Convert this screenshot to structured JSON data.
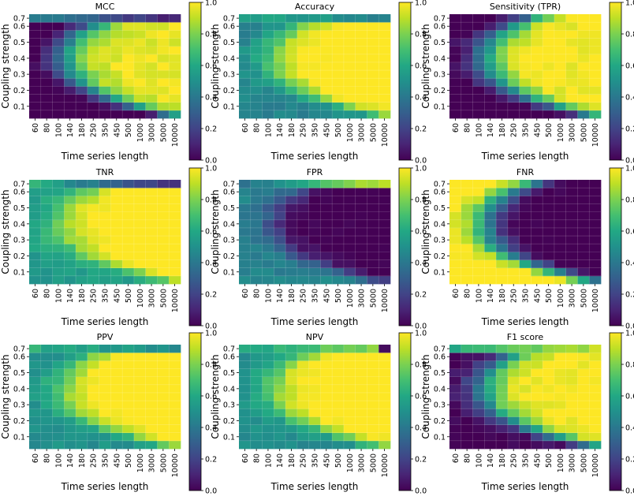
{
  "figure": {
    "colorbar_ticks": [
      "0.0",
      "0.2",
      "0.4",
      "0.6",
      "0.8",
      "1.0"
    ],
    "colormap": [
      "#440154",
      "#482475",
      "#414487",
      "#355f8d",
      "#2a788e",
      "#21918c",
      "#22a884",
      "#44bf70",
      "#7ad151",
      "#bddf26",
      "#fde725"
    ]
  },
  "chart_data": [
    {
      "type": "heatmap",
      "title": "MCC",
      "pattern": "mcc",
      "xlabel": "Time series length",
      "ylabel": "Coupling strength",
      "x_categories": [
        "60",
        "80",
        "100",
        "140",
        "180",
        "250",
        "350",
        "450",
        "500",
        "1000",
        "3000",
        "5000",
        "10000"
      ],
      "y_ticks": [
        "0.1",
        "0.2",
        "0.3",
        "0.4",
        "0.5",
        "0.6",
        "0.7"
      ],
      "zlim": [
        0,
        1
      ]
    },
    {
      "type": "heatmap",
      "title": "Accuracy",
      "pattern": "acc",
      "xlabel": "Time series length",
      "ylabel": "Coupling strength",
      "x_categories": [
        "60",
        "80",
        "100",
        "140",
        "180",
        "250",
        "350",
        "450",
        "500",
        "1000",
        "3000",
        "5000",
        "10000"
      ],
      "y_ticks": [
        "0.1",
        "0.2",
        "0.3",
        "0.4",
        "0.5",
        "0.6",
        "0.7"
      ],
      "zlim": [
        0,
        1
      ]
    },
    {
      "type": "heatmap",
      "title": "Sensitivity (TPR)",
      "pattern": "tpr",
      "xlabel": "Time series length",
      "ylabel": "Coupling strength",
      "x_categories": [
        "60",
        "80",
        "100",
        "140",
        "180",
        "250",
        "350",
        "450",
        "500",
        "1000",
        "3000",
        "5000",
        "10000"
      ],
      "y_ticks": [
        "0.1",
        "0.2",
        "0.3",
        "0.4",
        "0.5",
        "0.6",
        "0.7"
      ],
      "zlim": [
        0,
        1
      ]
    },
    {
      "type": "heatmap",
      "title": "TNR",
      "pattern": "tnr",
      "xlabel": "Time series length",
      "ylabel": "Coupling strength",
      "x_categories": [
        "60",
        "80",
        "100",
        "140",
        "180",
        "250",
        "350",
        "450",
        "500",
        "1000",
        "3000",
        "5000",
        "10000"
      ],
      "y_ticks": [
        "0.1",
        "0.2",
        "0.3",
        "0.4",
        "0.5",
        "0.6",
        "0.7"
      ],
      "zlim": [
        0,
        1
      ]
    },
    {
      "type": "heatmap",
      "title": "FPR",
      "pattern": "fpr",
      "xlabel": "Time series length",
      "ylabel": "Coupling strength",
      "x_categories": [
        "60",
        "80",
        "100",
        "140",
        "180",
        "250",
        "350",
        "450",
        "500",
        "1000",
        "3000",
        "5000",
        "10000"
      ],
      "y_ticks": [
        "0.1",
        "0.2",
        "0.3",
        "0.4",
        "0.5",
        "0.6",
        "0.7"
      ],
      "zlim": [
        0,
        1
      ]
    },
    {
      "type": "heatmap",
      "title": "FNR",
      "pattern": "fnr",
      "xlabel": "Time series length",
      "ylabel": "Coupling strength",
      "x_categories": [
        "60",
        "80",
        "100",
        "140",
        "180",
        "250",
        "350",
        "450",
        "500",
        "1000",
        "3000",
        "5000",
        "10000"
      ],
      "y_ticks": [
        "0.1",
        "0.2",
        "0.3",
        "0.4",
        "0.5",
        "0.6",
        "0.7"
      ],
      "zlim": [
        0,
        1
      ]
    },
    {
      "type": "heatmap",
      "title": "PPV",
      "pattern": "ppv",
      "xlabel": "Time series length",
      "ylabel": "Coupling strength",
      "x_categories": [
        "60",
        "80",
        "100",
        "140",
        "180",
        "250",
        "350",
        "450",
        "500",
        "1000",
        "3000",
        "5000",
        "10000"
      ],
      "y_ticks": [
        "0.1",
        "0.2",
        "0.3",
        "0.4",
        "0.5",
        "0.6",
        "0.7"
      ],
      "zlim": [
        0,
        1
      ]
    },
    {
      "type": "heatmap",
      "title": "NPV",
      "pattern": "npv",
      "xlabel": "Time series length",
      "ylabel": "Coupling strength",
      "x_categories": [
        "60",
        "80",
        "100",
        "140",
        "180",
        "250",
        "350",
        "450",
        "500",
        "1000",
        "3000",
        "5000",
        "10000"
      ],
      "y_ticks": [
        "0.1",
        "0.2",
        "0.3",
        "0.4",
        "0.5",
        "0.6",
        "0.7"
      ],
      "zlim": [
        0,
        1
      ]
    },
    {
      "type": "heatmap",
      "title": "F1 score",
      "pattern": "f1",
      "xlabel": "Time series length",
      "ylabel": "Coupling strength",
      "x_categories": [
        "60",
        "80",
        "100",
        "140",
        "180",
        "250",
        "350",
        "450",
        "500",
        "1000",
        "3000",
        "5000",
        "10000"
      ],
      "y_ticks": [
        "0.1",
        "0.2",
        "0.3",
        "0.4",
        "0.5",
        "0.6",
        "0.7"
      ],
      "zlim": [
        0,
        1
      ]
    }
  ]
}
